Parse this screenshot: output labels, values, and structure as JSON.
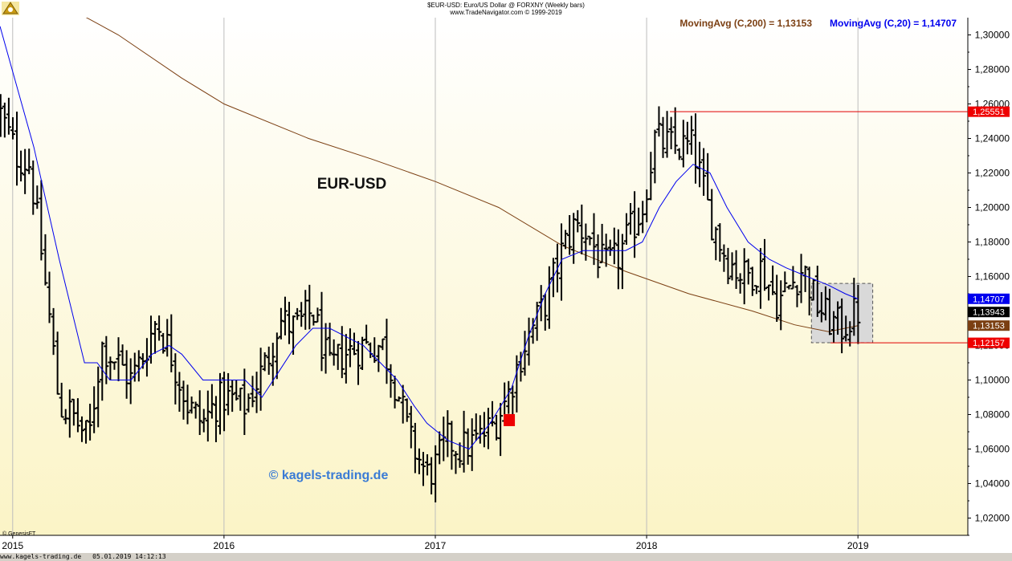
{
  "header": {
    "title": "$EUR-USD:  Euro/US Dollar @ FORXNY  (Weekly bars)",
    "subtitle": "www.TradeNavigator.com © 1999-2019"
  },
  "legend": {
    "ma200_label": "MovingAvg (C,200) = 1,13153",
    "ma20_label": "MovingAvg (C,20) = 1,14707",
    "ma200_color": "#7b3f12",
    "ma20_color": "#0000ee"
  },
  "texts": {
    "symbol": "EUR-USD",
    "watermark": "© kagels-trading.de",
    "provider": "© GenesisFT",
    "footer_site": "www.kagels-trading.de",
    "footer_date": "05.01.2019 14:12:13"
  },
  "colors": {
    "background_top": "#ffffff",
    "background_bottom": "#fbf4c6",
    "bars": "#000000",
    "ma200": "#7b3f12",
    "ma20": "#0000ee",
    "level_line": "#e00000",
    "signal": "#ee0000",
    "box_fill": "#d9d9d9"
  },
  "chart_data": {
    "type": "ohlc",
    "interval": "weekly",
    "x_range": [
      2014.94,
      2019.52
    ],
    "ylim": [
      1.01,
      1.31
    ],
    "yticks": [
      "1,02000",
      "1,04000",
      "1,06000",
      "1,08000",
      "1,10000",
      "1,12000",
      "1,14000",
      "1,16000",
      "1,18000",
      "1,20000",
      "1,22000",
      "1,24000",
      "1,26000",
      "1,28000",
      "1,30000"
    ],
    "xticks": [
      {
        "label": "2015",
        "t": 2015.0
      },
      {
        "label": "2016",
        "t": 2016.0
      },
      {
        "label": "2017",
        "t": 2017.0
      },
      {
        "label": "2018",
        "t": 2018.0
      },
      {
        "label": "2019",
        "t": 2019.0
      }
    ],
    "grid": "vertical at year starts",
    "series_anchors": {
      "close": [
        [
          2014.94,
          1.255
        ],
        [
          2015.02,
          1.23
        ],
        [
          2015.08,
          1.225
        ],
        [
          2015.13,
          1.18
        ],
        [
          2015.18,
          1.13
        ],
        [
          2015.22,
          1.085
        ],
        [
          2015.28,
          1.08
        ],
        [
          2015.36,
          1.065
        ],
        [
          2015.42,
          1.12
        ],
        [
          2015.5,
          1.11
        ],
        [
          2015.56,
          1.1
        ],
        [
          2015.62,
          1.115
        ],
        [
          2015.68,
          1.135
        ],
        [
          2015.75,
          1.115
        ],
        [
          2015.83,
          1.085
        ],
        [
          2015.9,
          1.075
        ],
        [
          2015.95,
          1.085
        ],
        [
          2016.0,
          1.09
        ],
        [
          2016.1,
          1.085
        ],
        [
          2016.2,
          1.11
        ],
        [
          2016.26,
          1.135
        ],
        [
          2016.34,
          1.13
        ],
        [
          2016.42,
          1.14
        ],
        [
          2016.5,
          1.105
        ],
        [
          2016.56,
          1.115
        ],
        [
          2016.66,
          1.12
        ],
        [
          2016.75,
          1.12
        ],
        [
          2016.82,
          1.095
        ],
        [
          2016.88,
          1.065
        ],
        [
          2016.96,
          1.045
        ],
        [
          2017.0,
          1.05
        ],
        [
          2017.06,
          1.065
        ],
        [
          2017.12,
          1.06
        ],
        [
          2017.2,
          1.065
        ],
        [
          2017.28,
          1.075
        ],
        [
          2017.34,
          1.09
        ],
        [
          2017.42,
          1.12
        ],
        [
          2017.52,
          1.145
        ],
        [
          2017.6,
          1.175
        ],
        [
          2017.66,
          1.19
        ],
        [
          2017.72,
          1.185
        ],
        [
          2017.8,
          1.165
        ],
        [
          2017.86,
          1.17
        ],
        [
          2017.92,
          1.185
        ],
        [
          2017.98,
          1.2
        ],
        [
          2018.04,
          1.24
        ],
        [
          2018.12,
          1.235
        ],
        [
          2018.22,
          1.235
        ],
        [
          2018.3,
          1.195
        ],
        [
          2018.38,
          1.17
        ],
        [
          2018.46,
          1.16
        ],
        [
          2018.54,
          1.165
        ],
        [
          2018.62,
          1.145
        ],
        [
          2018.68,
          1.155
        ],
        [
          2018.74,
          1.165
        ],
        [
          2018.8,
          1.145
        ],
        [
          2018.86,
          1.135
        ],
        [
          2018.92,
          1.13
        ],
        [
          2019.0,
          1.14
        ]
      ],
      "ma20": [
        [
          2014.94,
          1.305
        ],
        [
          2015.1,
          1.235
        ],
        [
          2015.22,
          1.17
        ],
        [
          2015.34,
          1.11
        ],
        [
          2015.4,
          1.11
        ],
        [
          2015.46,
          1.1
        ],
        [
          2015.56,
          1.1
        ],
        [
          2015.66,
          1.115
        ],
        [
          2015.74,
          1.12
        ],
        [
          2015.8,
          1.115
        ],
        [
          2015.9,
          1.1
        ],
        [
          2015.98,
          1.1
        ],
        [
          2016.1,
          1.1
        ],
        [
          2016.18,
          1.09
        ],
        [
          2016.26,
          1.105
        ],
        [
          2016.34,
          1.12
        ],
        [
          2016.42,
          1.13
        ],
        [
          2016.5,
          1.13
        ],
        [
          2016.58,
          1.125
        ],
        [
          2016.66,
          1.12
        ],
        [
          2016.74,
          1.11
        ],
        [
          2016.82,
          1.1
        ],
        [
          2016.9,
          1.085
        ],
        [
          2016.96,
          1.075
        ],
        [
          2017.06,
          1.065
        ],
        [
          2017.16,
          1.06
        ],
        [
          2017.26,
          1.075
        ],
        [
          2017.36,
          1.095
        ],
        [
          2017.44,
          1.125
        ],
        [
          2017.52,
          1.15
        ],
        [
          2017.6,
          1.17
        ],
        [
          2017.7,
          1.175
        ],
        [
          2017.8,
          1.175
        ],
        [
          2017.9,
          1.175
        ],
        [
          2017.98,
          1.18
        ],
        [
          2018.06,
          1.2
        ],
        [
          2018.14,
          1.215
        ],
        [
          2018.22,
          1.225
        ],
        [
          2018.3,
          1.22
        ],
        [
          2018.38,
          1.2
        ],
        [
          2018.48,
          1.18
        ],
        [
          2018.58,
          1.17
        ],
        [
          2018.66,
          1.165
        ],
        [
          2018.76,
          1.16
        ],
        [
          2018.86,
          1.155
        ],
        [
          2018.94,
          1.15
        ],
        [
          2019.0,
          1.147
        ]
      ],
      "ma200": [
        [
          2014.94,
          1.325
        ],
        [
          2015.2,
          1.32
        ],
        [
          2015.5,
          1.3
        ],
        [
          2015.8,
          1.275
        ],
        [
          2016.0,
          1.26
        ],
        [
          2016.4,
          1.24
        ],
        [
          2016.7,
          1.228
        ],
        [
          2017.0,
          1.215
        ],
        [
          2017.3,
          1.2
        ],
        [
          2017.6,
          1.178
        ],
        [
          2017.9,
          1.163
        ],
        [
          2018.2,
          1.15
        ],
        [
          2018.5,
          1.14
        ],
        [
          2018.7,
          1.132
        ],
        [
          2018.86,
          1.128
        ],
        [
          2019.0,
          1.1315
        ]
      ]
    },
    "series": [
      {
        "name": "MovingAvg (C,200)",
        "last": 1.13153
      },
      {
        "name": "MovingAvg (C,20)",
        "last": 1.14707
      }
    ],
    "annotations": {
      "high_level": {
        "value": 1.2555,
        "label": "1,25551",
        "from_t": 2018.11
      },
      "low_level": {
        "value": 1.12157,
        "label": "1,12157",
        "from_t": 2018.87
      },
      "last_close": {
        "value": 1.13943,
        "label": "1,13943"
      },
      "ma20_last_label": "1,14707",
      "ma200_last_label": "1,13153",
      "range_box": {
        "t0": 2018.78,
        "t1": 2019.07,
        "y0": 1.1216,
        "y1": 1.156
      },
      "signal_marker": {
        "t": 2017.35,
        "value": 1.077
      }
    }
  }
}
